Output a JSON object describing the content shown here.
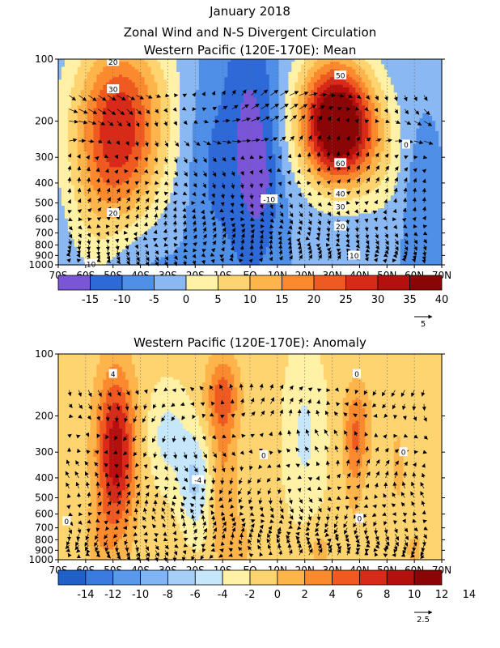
{
  "title": "January 2018",
  "chart_data": [
    {
      "type": "heatmap",
      "title": "Zonal Wind and N-S Divergent Circulation",
      "subtitle": "Western Pacific (120E-170E): Mean",
      "x_ticks": [
        "70S",
        "60S",
        "50S",
        "40S",
        "30S",
        "20S",
        "10S",
        "EQ",
        "10N",
        "20N",
        "30N",
        "40N",
        "50N",
        "60N",
        "70N"
      ],
      "y_ticks": [
        "100",
        "200",
        "300",
        "400",
        "500",
        "600",
        "700",
        "800",
        "900",
        "1000"
      ],
      "x_range": [
        -70,
        70
      ],
      "y_range": [
        1000,
        100
      ],
      "y_scale": "log",
      "contour_labels": [
        "20",
        "30",
        "20",
        "10",
        "-10",
        "50",
        "60",
        "40",
        "30",
        "20",
        "10",
        "0"
      ],
      "colorbar": {
        "colors": [
          "#7a55d6",
          "#2e69d8",
          "#4f8fe8",
          "#8ab8f2",
          "#fff1a6",
          "#fed470",
          "#fdb44a",
          "#fb8a2e",
          "#ef5a20",
          "#d72a18",
          "#b3100e",
          "#8a0606"
        ],
        "tick_labels": [
          "-15",
          "-10",
          "-5",
          "0",
          "5",
          "10",
          "15",
          "20",
          "25",
          "30",
          "35",
          "40"
        ]
      },
      "vector_reference": "5"
    },
    {
      "type": "heatmap",
      "subtitle": "Western Pacific (120E-170E): Anomaly",
      "x_ticks": [
        "70S",
        "60S",
        "50S",
        "40S",
        "30S",
        "20S",
        "10S",
        "EQ",
        "10N",
        "20N",
        "30N",
        "40N",
        "50N",
        "60N",
        "70N"
      ],
      "y_ticks": [
        "100",
        "200",
        "300",
        "400",
        "500",
        "600",
        "700",
        "800",
        "900",
        "1000"
      ],
      "x_range": [
        -70,
        70
      ],
      "y_range": [
        1000,
        100
      ],
      "y_scale": "log",
      "contour_labels": [
        "4",
        "-4",
        "0",
        "0",
        "0",
        "0",
        "0"
      ],
      "colorbar": {
        "colors": [
          "#1f5fc8",
          "#3a7be0",
          "#5a98ec",
          "#7fb5f4",
          "#a6cff7",
          "#c6e6fa",
          "#fff1a6",
          "#fed470",
          "#fdb44a",
          "#fb8a2e",
          "#ef5a20",
          "#d72a18",
          "#b3100e",
          "#8a0606"
        ],
        "tick_labels": [
          "-14",
          "-12",
          "-10",
          "-8",
          "-6",
          "-4",
          "-2",
          "0",
          "2",
          "4",
          "6",
          "8",
          "10",
          "12",
          "14"
        ]
      },
      "vector_reference": "2.5"
    }
  ]
}
